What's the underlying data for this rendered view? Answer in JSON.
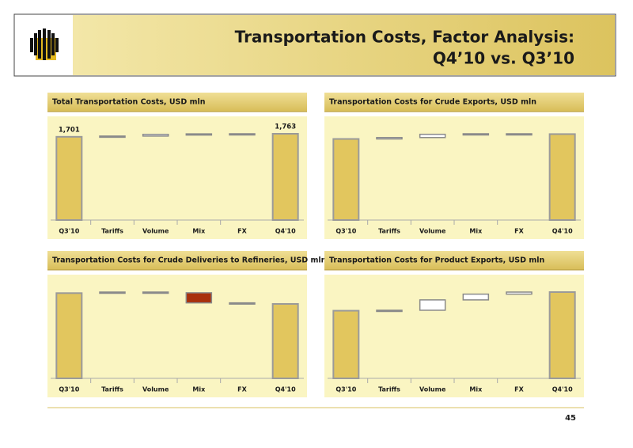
{
  "header": {
    "title_lines": [
      "Transportation Costs, Factor Analysis:",
      "Q4’10 vs. Q3’10"
    ]
  },
  "chart_data": [
    {
      "type": "waterfall",
      "title": "Total Transportation Costs, USD mln",
      "categories": [
        "Q3'10",
        "Tariffs",
        "Volume",
        "Mix",
        "FX",
        "Q4'10"
      ],
      "values": [
        1701,
        15,
        35,
        10,
        2,
        1763
      ],
      "value_labels": [
        "1,701",
        null,
        null,
        null,
        null,
        "1,763"
      ]
    },
    {
      "type": "waterfall",
      "title": "Transportation Costs for Crude Exports, USD mln",
      "categories": [
        "Q3'10",
        "Tariffs",
        "Volume",
        "Mix",
        "FX",
        "Q4'10"
      ],
      "values": [
        751,
        13,
        30,
        5,
        -3,
        796
      ]
    },
    {
      "type": "waterfall",
      "title": "Transportation Costs for Crude Deliveries to Refineries, USD mln",
      "categories": [
        "Q3'10",
        "Tariffs",
        "Volume",
        "Mix",
        "FX",
        "Q4'10"
      ],
      "values": [
        489,
        6,
        -4,
        -58,
        -6,
        427
      ]
    },
    {
      "type": "waterfall",
      "title": "Transportation Costs for Product Exports, USD mln",
      "categories": [
        "Q3'10",
        "Tariffs",
        "Volume",
        "Mix",
        "FX",
        "Q4'10"
      ],
      "values": [
        294,
        2,
        45,
        25,
        9,
        375
      ]
    }
  ],
  "footer": {
    "page_number": "45"
  }
}
